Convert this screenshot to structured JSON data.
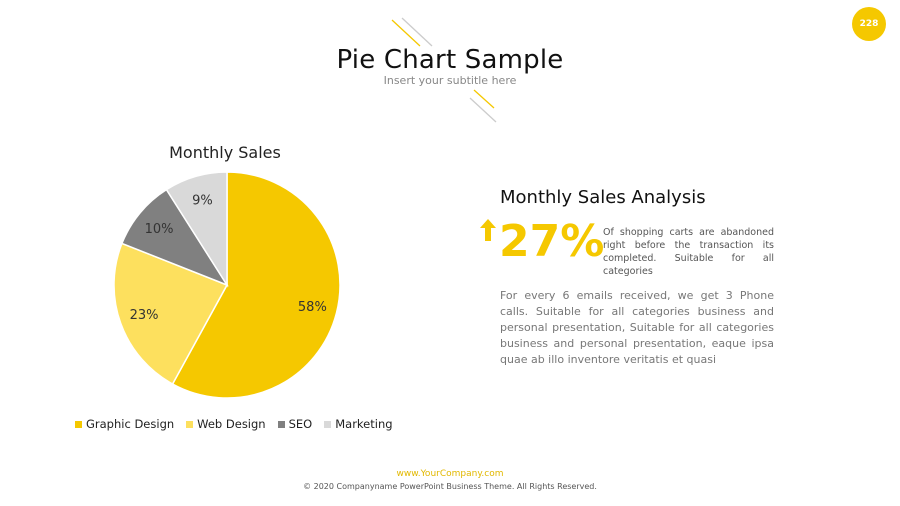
{
  "slide": {
    "number": "228",
    "title": "Pie Chart Sample",
    "subtitle": "Insert your subtitle here"
  },
  "colors": {
    "accent": "#F5C800",
    "graphic_design": "#F5C800",
    "web_design": "#FDE05E",
    "seo": "#808080",
    "marketing": "#D9D9D9"
  },
  "chart_data": {
    "type": "pie",
    "title": "Monthly Sales",
    "categories": [
      "Graphic Design",
      "Web Design",
      "SEO",
      "Marketing"
    ],
    "values": [
      58,
      23,
      10,
      9
    ],
    "labels": [
      "58%",
      "23%",
      "10%",
      "9%"
    ],
    "legend": "bottom"
  },
  "analysis": {
    "heading": "Monthly Sales Analysis",
    "stat": "27%",
    "stat_description": "Of shopping carts are abandoned right before the transaction its completed. Suitable for all categories",
    "body": "For every 6 emails received, we get 3 Phone calls. Suitable for all categories business and personal presentation, Suitable for all categories business and personal presentation, eaque ipsa quae ab illo inventore veritatis et quasi"
  },
  "footer": {
    "url": "www.YourCompany.com",
    "copyright": "© 2020 Companyname PowerPoint Business Theme. All Rights Reserved."
  }
}
